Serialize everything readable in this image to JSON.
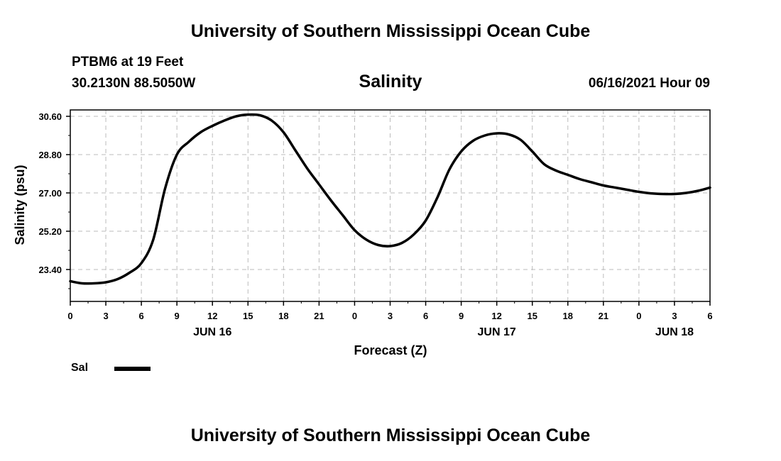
{
  "header": {
    "title": "University of Southern Mississippi Ocean Cube",
    "station": "PTBM6 at 19 Feet",
    "coords": "30.2130N  88.5050W",
    "chart_title": "Salinity",
    "timestamp": "06/16/2021 Hour 09"
  },
  "footer": {
    "title": "University of Southern Mississippi Ocean Cube"
  },
  "legend": {
    "label": "Sal"
  },
  "colors": {
    "line": "#000000",
    "grid": "#bbbbbb"
  },
  "chart_data": {
    "type": "line",
    "title": "Salinity",
    "xlabel": "Forecast (Z)",
    "ylabel": "Salinity (psu)",
    "xlim": [
      0,
      54
    ],
    "ylim": [
      21.9,
      30.9
    ],
    "grid": true,
    "legend_position": "bottom-left",
    "x_ticks": [
      0,
      3,
      6,
      9,
      12,
      15,
      18,
      21,
      24,
      27,
      30,
      33,
      36,
      39,
      42,
      45,
      48,
      51,
      54
    ],
    "x_tick_labels": [
      "0",
      "3",
      "6",
      "9",
      "12",
      "15",
      "18",
      "21",
      "0",
      "3",
      "6",
      "9",
      "12",
      "15",
      "18",
      "21",
      "0",
      "3",
      "6"
    ],
    "date_labels": [
      {
        "x": 12,
        "label": "JUN 16"
      },
      {
        "x": 36,
        "label": "JUN 17"
      },
      {
        "x": 51,
        "label": "JUN 18"
      }
    ],
    "y_ticks": [
      23.4,
      25.2,
      27.0,
      28.8,
      30.6
    ],
    "y_tick_labels": [
      "23.40",
      "25.20",
      "27.00",
      "28.80",
      "30.60"
    ],
    "series": [
      {
        "name": "Sal",
        "x": [
          0,
          1,
          2,
          3,
          4,
          5,
          6,
          7,
          8,
          9,
          10,
          11,
          12,
          13,
          14,
          15,
          16,
          17,
          18,
          19,
          20,
          21,
          22,
          23,
          24,
          25,
          26,
          27,
          28,
          29,
          30,
          31,
          32,
          33,
          34,
          35,
          36,
          37,
          38,
          39,
          40,
          41,
          42,
          43,
          44,
          45,
          46,
          47,
          48,
          49,
          50,
          51,
          52,
          53,
          54
        ],
        "values": [
          22.85,
          22.75,
          22.75,
          22.8,
          22.95,
          23.25,
          23.7,
          24.8,
          27.2,
          28.8,
          29.4,
          29.85,
          30.15,
          30.4,
          30.6,
          30.68,
          30.65,
          30.4,
          29.85,
          29.0,
          28.15,
          27.4,
          26.65,
          25.95,
          25.25,
          24.8,
          24.55,
          24.5,
          24.65,
          25.05,
          25.7,
          26.8,
          28.1,
          28.95,
          29.45,
          29.7,
          29.8,
          29.75,
          29.5,
          28.95,
          28.35,
          28.05,
          27.85,
          27.65,
          27.5,
          27.35,
          27.25,
          27.15,
          27.05,
          26.98,
          26.95,
          26.95,
          27.0,
          27.1,
          27.25
        ]
      }
    ]
  }
}
